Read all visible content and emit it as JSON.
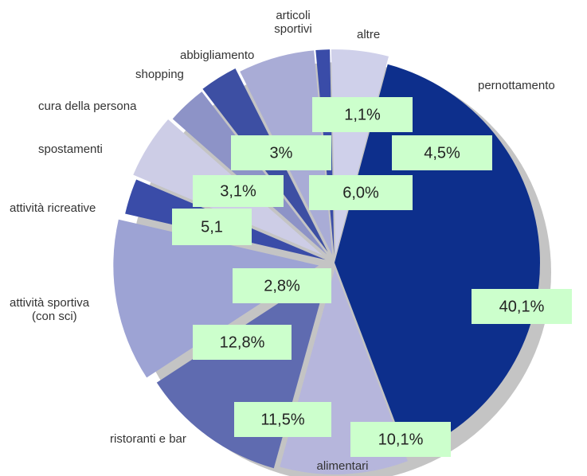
{
  "chart_data": {
    "type": "pie",
    "categories": [
      "pernottamento",
      "alimentari",
      "ristoranti e bar",
      "attività sportiva (con sci)",
      "attività ricreative",
      "spostamenti",
      "cura della persona",
      "shopping",
      "abbigliamento",
      "articoli sportivi",
      "altre"
    ],
    "values": [
      40.1,
      10.1,
      11.5,
      12.8,
      2.8,
      5.1,
      3.1,
      3,
      6.0,
      1.1,
      4.5
    ],
    "value_labels": [
      "40,1%",
      "10,1%",
      "11,5%",
      "12,8%",
      "2,8%",
      "5,1",
      "3,1%",
      "3%",
      "6,0%",
      "1,1%",
      "4,5%"
    ],
    "colors": [
      "#0d2f8c",
      "#b6b6dc",
      "#5f6bb0",
      "#9da3d4",
      "#3a4ca8",
      "#cdcde6",
      "#8d93c7",
      "#3d4fa3",
      "#a9acd6",
      "#3a4ca8",
      "#cfd0ea"
    ]
  }
}
